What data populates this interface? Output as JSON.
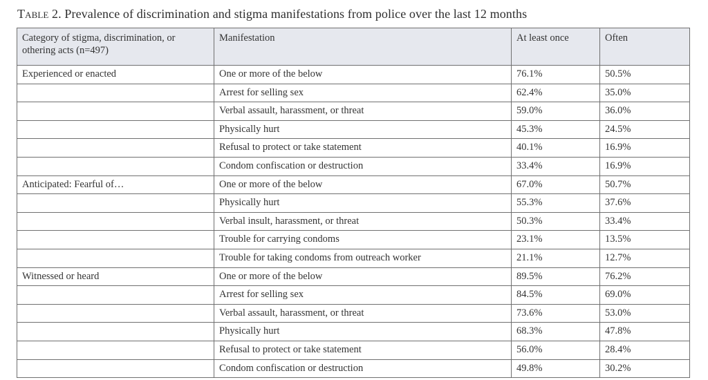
{
  "caption": {
    "label": "Table 2.",
    "text": "Prevalence of discrimination and stigma manifestations from police over the last 12 months"
  },
  "table": {
    "headers": [
      "Category of stigma, discrimination, or othering acts (n=497)",
      "Manifestation",
      "At least once",
      "Often"
    ],
    "rows": [
      {
        "category": "Experienced or enacted",
        "manifestation": "One or more of the below",
        "at_least_once": "76.1%",
        "often": "50.5%"
      },
      {
        "category": "",
        "manifestation": "Arrest for selling sex",
        "at_least_once": "62.4%",
        "often": "35.0%"
      },
      {
        "category": "",
        "manifestation": "Verbal assault, harassment, or threat",
        "at_least_once": "59.0%",
        "often": "36.0%"
      },
      {
        "category": "",
        "manifestation": "Physically hurt",
        "at_least_once": "45.3%",
        "often": "24.5%"
      },
      {
        "category": "",
        "manifestation": "Refusal to protect or take statement",
        "at_least_once": "40.1%",
        "often": "16.9%"
      },
      {
        "category": "",
        "manifestation": "Condom confiscation or destruction",
        "at_least_once": "33.4%",
        "often": "16.9%"
      },
      {
        "category": "Anticipated: Fearful of…",
        "manifestation": "One or more of the below",
        "at_least_once": "67.0%",
        "often": "50.7%"
      },
      {
        "category": "",
        "manifestation": "Physically hurt",
        "at_least_once": "55.3%",
        "often": "37.6%"
      },
      {
        "category": "",
        "manifestation": "Verbal insult, harassment, or threat",
        "at_least_once": "50.3%",
        "often": "33.4%"
      },
      {
        "category": "",
        "manifestation": "Trouble for carrying condoms",
        "at_least_once": "23.1%",
        "often": "13.5%"
      },
      {
        "category": "",
        "manifestation": "Trouble for taking condoms from outreach worker",
        "at_least_once": "21.1%",
        "often": "12.7%"
      },
      {
        "category": "Witnessed or heard",
        "manifestation": "One or more of the below",
        "at_least_once": "89.5%",
        "often": "76.2%"
      },
      {
        "category": "",
        "manifestation": "Arrest for selling sex",
        "at_least_once": "84.5%",
        "often": "69.0%"
      },
      {
        "category": "",
        "manifestation": "Verbal assault, harassment, or threat",
        "at_least_once": "73.6%",
        "often": "53.0%"
      },
      {
        "category": "",
        "manifestation": "Physically hurt",
        "at_least_once": "68.3%",
        "often": "47.8%"
      },
      {
        "category": "",
        "manifestation": "Refusal to protect or take statement",
        "at_least_once": "56.0%",
        "often": "28.4%"
      },
      {
        "category": "",
        "manifestation": "Condom confiscation or destruction",
        "at_least_once": "49.8%",
        "often": "30.2%"
      }
    ]
  }
}
